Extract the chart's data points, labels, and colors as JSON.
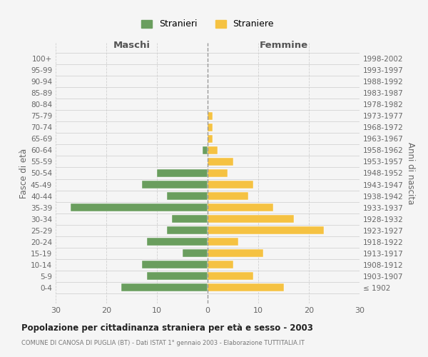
{
  "age_groups": [
    "100+",
    "95-99",
    "90-94",
    "85-89",
    "80-84",
    "75-79",
    "70-74",
    "65-69",
    "60-64",
    "55-59",
    "50-54",
    "45-49",
    "40-44",
    "35-39",
    "30-34",
    "25-29",
    "20-24",
    "15-19",
    "10-14",
    "5-9",
    "0-4"
  ],
  "birth_years": [
    "≤ 1902",
    "1903-1907",
    "1908-1912",
    "1913-1917",
    "1918-1922",
    "1923-1927",
    "1928-1932",
    "1933-1937",
    "1938-1942",
    "1943-1947",
    "1948-1952",
    "1953-1957",
    "1958-1962",
    "1963-1967",
    "1968-1972",
    "1973-1977",
    "1978-1982",
    "1983-1987",
    "1988-1992",
    "1993-1997",
    "1998-2002"
  ],
  "maschi": [
    0,
    0,
    0,
    0,
    0,
    0,
    0,
    0,
    1,
    0,
    10,
    13,
    8,
    27,
    7,
    8,
    12,
    5,
    13,
    12,
    17
  ],
  "femmine": [
    0,
    0,
    0,
    0,
    0,
    1,
    1,
    1,
    2,
    5,
    4,
    9,
    8,
    13,
    17,
    23,
    6,
    11,
    5,
    9,
    15
  ],
  "color_maschi": "#6a9e5e",
  "color_femmine": "#f5c242",
  "xlim": 30,
  "title": "Popolazione per cittadinanza straniera per età e sesso - 2003",
  "subtitle": "COMUNE DI CANOSA DI PUGLIA (BT) - Dati ISTAT 1° gennaio 2003 - Elaborazione TUTTITALIA.IT",
  "ylabel_left": "Fasce di età",
  "ylabel_right": "Anni di nascita",
  "label_maschi": "Stranieri",
  "label_femmine": "Straniere",
  "header_left": "Maschi",
  "header_right": "Femmine",
  "bg_color": "#f5f5f5",
  "grid_color": "#cccccc",
  "bar_height": 0.72
}
